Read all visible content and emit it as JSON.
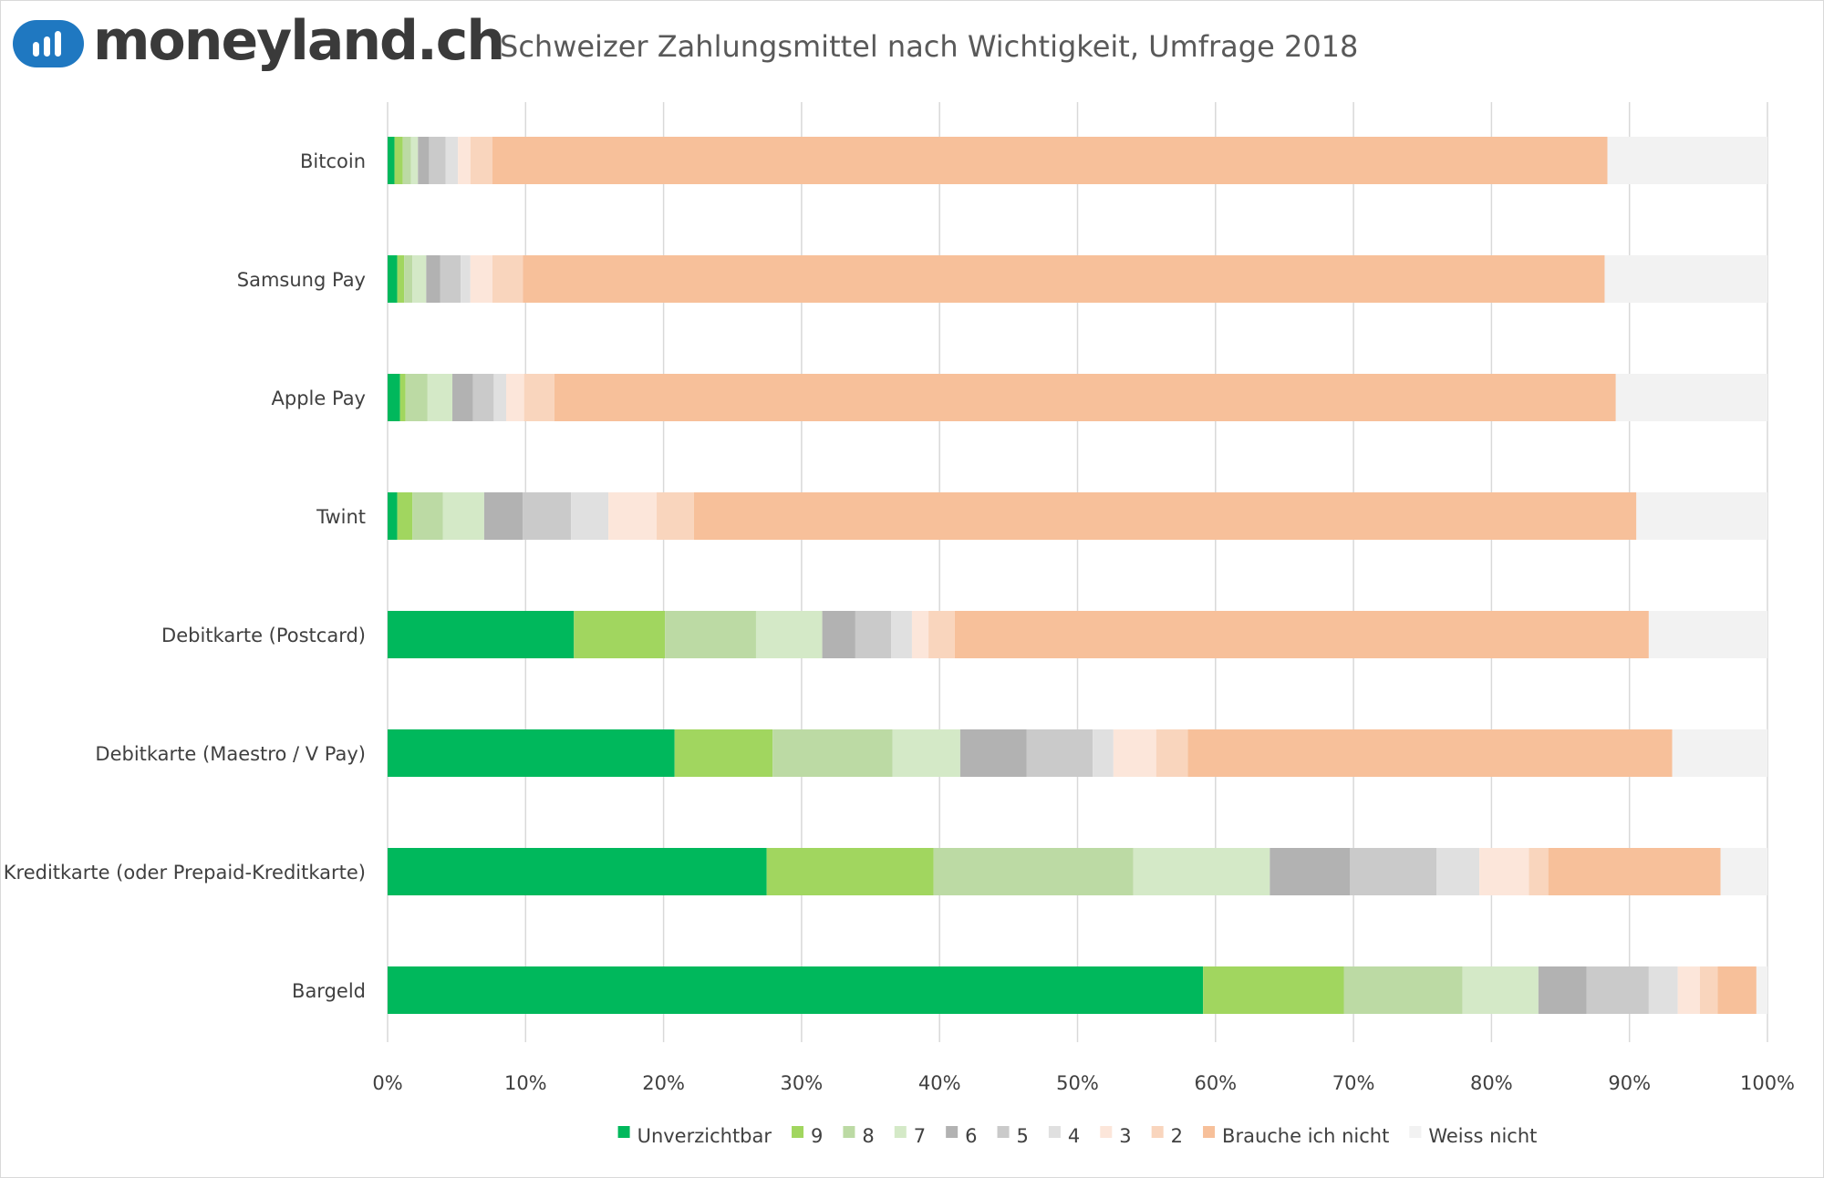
{
  "header": {
    "logo_text": "moneyland.ch",
    "logo_icon": "bar-chart-icon"
  },
  "chart_data": {
    "type": "bar",
    "orientation": "horizontal",
    "stacked": "100%",
    "title": "Schweizer Zahlungsmittel nach Wichtigkeit, Umfrage 2018",
    "xlabel": "",
    "ylabel": "",
    "xlim": [
      0,
      100
    ],
    "x_ticks": [
      "0%",
      "10%",
      "20%",
      "30%",
      "40%",
      "50%",
      "60%",
      "70%",
      "80%",
      "90%",
      "100%"
    ],
    "grid": "vertical",
    "legend_position": "bottom",
    "categories": [
      "Bitcoin",
      "Samsung Pay",
      "Apple Pay",
      "Twint",
      "Debitkarte (Postcard)",
      "Debitkarte (Maestro / V Pay)",
      "Kreditkarte (oder Prepaid-Kreditkarte)",
      "Bargeld"
    ],
    "series": [
      {
        "name": "Unverzichtbar",
        "color": "#00b85c",
        "values": [
          0.5,
          0.7,
          0.9,
          0.7,
          13.5,
          20.8,
          27.5,
          59.1
        ]
      },
      {
        "name": "9",
        "color": "#a1d65f",
        "values": [
          0.6,
          0.5,
          0.4,
          1.1,
          6.6,
          7.1,
          12.1,
          10.2
        ]
      },
      {
        "name": "8",
        "color": "#bcdaa4",
        "values": [
          0.6,
          0.6,
          1.6,
          2.2,
          6.6,
          8.7,
          14.5,
          8.6
        ]
      },
      {
        "name": "7",
        "color": "#d4e9c7",
        "values": [
          0.5,
          1.0,
          1.8,
          3.0,
          4.8,
          4.9,
          9.9,
          5.5
        ]
      },
      {
        "name": "6",
        "color": "#b2b2b2",
        "values": [
          0.8,
          1.0,
          1.5,
          2.8,
          2.4,
          4.8,
          5.8,
          3.5
        ]
      },
      {
        "name": "5",
        "color": "#cacaca",
        "values": [
          1.2,
          1.5,
          1.5,
          3.5,
          2.6,
          4.8,
          6.3,
          4.5
        ]
      },
      {
        "name": "4",
        "color": "#e0e0e0",
        "values": [
          0.9,
          0.7,
          0.9,
          2.7,
          1.5,
          1.5,
          3.1,
          2.1
        ]
      },
      {
        "name": "3",
        "color": "#fce6da",
        "values": [
          0.9,
          1.6,
          1.3,
          3.5,
          1.2,
          3.1,
          3.6,
          1.6
        ]
      },
      {
        "name": "2",
        "color": "#f9d5bd",
        "values": [
          1.6,
          2.2,
          2.2,
          2.7,
          1.9,
          2.3,
          1.4,
          1.3
        ]
      },
      {
        "name": "Brauche ich nicht",
        "color": "#f7c09a",
        "values": [
          80.8,
          78.4,
          77.0,
          68.3,
          50.3,
          35.1,
          12.5,
          2.8
        ]
      },
      {
        "name": "Weiss nicht",
        "color": "#f2f2f2",
        "values": [
          11.6,
          11.8,
          11.0,
          9.5,
          8.6,
          6.9,
          3.4,
          0.8
        ]
      }
    ]
  }
}
